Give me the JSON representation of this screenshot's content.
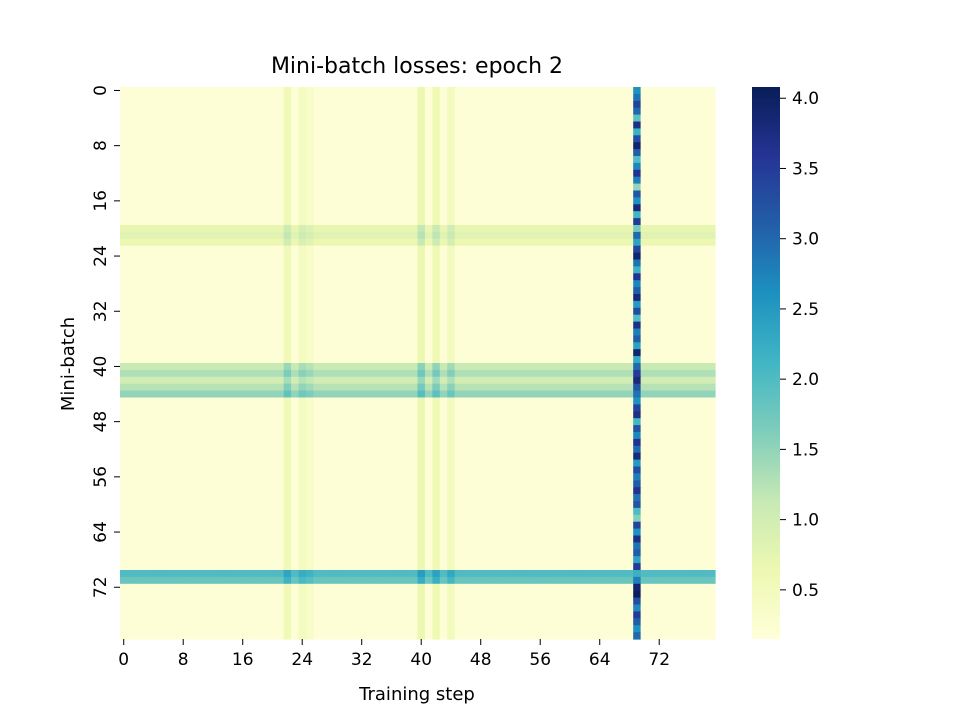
{
  "chart_data": {
    "type": "heatmap",
    "title": "Mini-batch losses: epoch 2",
    "xlabel": "Training step",
    "ylabel": "Mini-batch",
    "x_range": [
      0,
      79
    ],
    "y_range": [
      0,
      79
    ],
    "x_ticks": [
      0,
      8,
      16,
      24,
      32,
      40,
      48,
      56,
      64,
      72
    ],
    "y_ticks": [
      0,
      8,
      16,
      24,
      32,
      40,
      48,
      56,
      64,
      72
    ],
    "colorbar": {
      "min": 0.15,
      "max": 4.08,
      "ticks": [
        0.5,
        1.0,
        1.5,
        2.0,
        2.5,
        3.0,
        3.5,
        4.0
      ],
      "tick_labels": [
        "0.5",
        "1.0",
        "1.5",
        "2.0",
        "2.5",
        "3.0",
        "3.5",
        "4.0"
      ],
      "colormap": "YlGnBu",
      "stops": [
        "#ffffd9",
        "#edf8b1",
        "#c7e9b4",
        "#7fcdbb",
        "#41b6c4",
        "#1d91c0",
        "#225ea8",
        "#253494",
        "#081d58"
      ]
    },
    "base_loss": 0.2,
    "column_effects": [
      {
        "step": 22,
        "value": 0.35
      },
      {
        "step": 24,
        "value": 0.25
      },
      {
        "step": 25,
        "value": 0.15
      },
      {
        "step": 40,
        "value": 0.45
      },
      {
        "step": 42,
        "value": 0.4
      },
      {
        "step": 44,
        "value": 0.3
      }
    ],
    "row_effects": [
      {
        "batch": 20,
        "value": 0.5
      },
      {
        "batch": 21,
        "value": 0.6
      },
      {
        "batch": 22,
        "value": 0.45
      },
      {
        "batch": 40,
        "value": 0.9
      },
      {
        "batch": 41,
        "value": 1.1
      },
      {
        "batch": 42,
        "value": 0.8
      },
      {
        "batch": 43,
        "value": 1.05
      },
      {
        "batch": 44,
        "value": 1.3
      },
      {
        "batch": 70,
        "value": 1.8
      },
      {
        "batch": 71,
        "value": 1.6
      }
    ],
    "hot_column": {
      "step": 69,
      "values": [
        2.6,
        2.9,
        3.4,
        3.0,
        1.9,
        3.7,
        2.2,
        3.3,
        3.9,
        3.1,
        2.0,
        2.7,
        3.6,
        2.8,
        1.5,
        3.2,
        2.6,
        3.8,
        2.1,
        3.5,
        1.7,
        3.0,
        2.4,
        3.4,
        3.9,
        2.9,
        2.2,
        3.6,
        2.7,
        3.1,
        3.8,
        2.5,
        3.3,
        2.0,
        3.7,
        2.8,
        3.1,
        2.4,
        3.9,
        2.3,
        3.0,
        3.5,
        3.8,
        3.2,
        2.9,
        2.6,
        3.4,
        3.7,
        2.1,
        3.2,
        2.7,
        3.6,
        3.0,
        3.8,
        2.5,
        3.3,
        2.8,
        3.1,
        3.6,
        2.9,
        3.2,
        2.0,
        1.6,
        3.4,
        2.6,
        3.7,
        2.9,
        3.1,
        2.4,
        3.5,
        2.2,
        2.8,
        3.9,
        4.05,
        3.3,
        2.7,
        3.5,
        3.1,
        2.6,
        3.0
      ]
    }
  }
}
